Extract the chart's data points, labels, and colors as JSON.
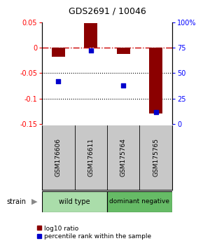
{
  "title": "GDS2691 / 10046",
  "samples": [
    "GSM176606",
    "GSM176611",
    "GSM175764",
    "GSM175765"
  ],
  "log10_ratios": [
    -0.018,
    0.048,
    -0.012,
    -0.13
  ],
  "percentile_ranks": [
    42,
    72,
    38,
    12
  ],
  "ylim_left": [
    -0.15,
    0.05
  ],
  "ylim_right": [
    0,
    100
  ],
  "yticks_left": [
    0.05,
    0,
    -0.05,
    -0.1,
    -0.15
  ],
  "yticks_right": [
    100,
    75,
    50,
    25,
    0
  ],
  "ytick_labels_left": [
    "0.05",
    "0",
    "-0.05",
    "-0.1",
    "-0.15"
  ],
  "ytick_labels_right": [
    "100%",
    "75",
    "50",
    "25",
    "0"
  ],
  "bar_color": "#8B0000",
  "dot_color": "#0000CC",
  "hline_color": "#CC0000",
  "dotted_lines": [
    -0.05,
    -0.1
  ],
  "strain_label": "strain",
  "legend_bar_label": "log10 ratio",
  "legend_dot_label": "percentile rank within the sample",
  "bar_width": 0.4,
  "plot_bg_color": "#ffffff",
  "label_area_bg": "#c8c8c8",
  "group_area_bg_wt": "#aaddaa",
  "group_area_bg_dn": "#66bb66",
  "wt_label": "wild type",
  "dn_label": "dominant negative"
}
